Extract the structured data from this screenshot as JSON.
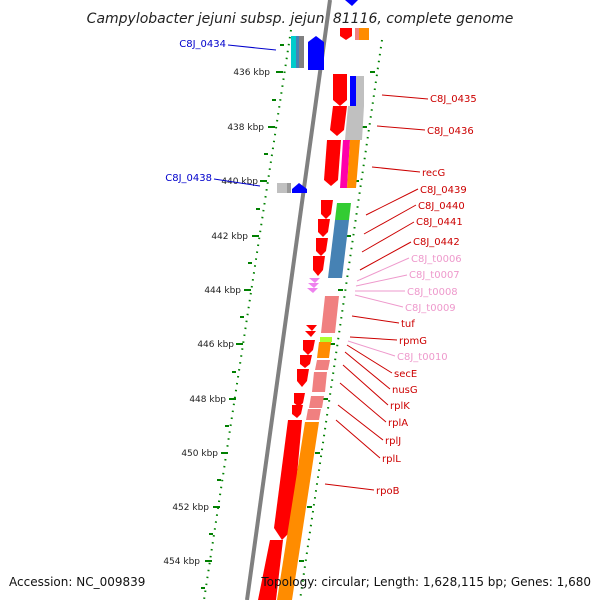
{
  "title": "Campylobacter jejuni subsp. jejuni 81116, complete genome",
  "accession": "Accession: NC_009839",
  "topology": "Topology: circular; Length: 1,628,115 bp; Genes: 1,680",
  "scale_ticks": [
    "436 kbp",
    "438 kbp",
    "440 kbp",
    "442 kbp",
    "444 kbp",
    "446 kbp",
    "448 kbp",
    "450 kbp",
    "452 kbp",
    "454 kbp"
  ],
  "colors": {
    "red": "#ff0000",
    "orange": "#ff8c00",
    "blue": "#0000ff",
    "pink": "#f08080",
    "light_pink": "#ee82ee",
    "gray": "#c0c0c0",
    "steel_blue": "#4682b4",
    "green": "#33cc33",
    "backbone": "#808080",
    "tick": "#008000"
  },
  "genes_left": [
    {
      "name": "C8J_0434",
      "color": "#0000cc"
    },
    {
      "name": "C8J_0438",
      "color": "#0000cc"
    }
  ],
  "genes_right": [
    {
      "name": "C8J_0435",
      "color": "#cc0000"
    },
    {
      "name": "C8J_0436",
      "color": "#cc0000"
    },
    {
      "name": "recG",
      "color": "#cc0000"
    },
    {
      "name": "C8J_0439",
      "color": "#cc0000"
    },
    {
      "name": "C8J_0440",
      "color": "#cc0000"
    },
    {
      "name": "C8J_0441",
      "color": "#cc0000"
    },
    {
      "name": "C8J_0442",
      "color": "#cc0000"
    },
    {
      "name": "C8J_t0006",
      "color": "#ee99cc"
    },
    {
      "name": "C8J_t0007",
      "color": "#ee99cc"
    },
    {
      "name": "C8J_t0008",
      "color": "#ee99cc"
    },
    {
      "name": "C8J_t0009",
      "color": "#ee99cc"
    },
    {
      "name": "tuf",
      "color": "#cc0000"
    },
    {
      "name": "rpmG",
      "color": "#cc0000"
    },
    {
      "name": "C8J_t0010",
      "color": "#ee99cc"
    },
    {
      "name": "secE",
      "color": "#cc0000"
    },
    {
      "name": "nusG",
      "color": "#cc0000"
    },
    {
      "name": "rplK",
      "color": "#cc0000"
    },
    {
      "name": "rplA",
      "color": "#cc0000"
    },
    {
      "name": "rplJ",
      "color": "#cc0000"
    },
    {
      "name": "rplL",
      "color": "#cc0000"
    },
    {
      "name": "rpoB",
      "color": "#cc0000"
    }
  ]
}
